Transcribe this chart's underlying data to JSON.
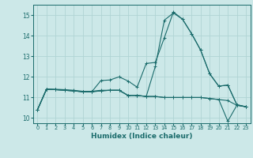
{
  "xlabel": "Humidex (Indice chaleur)",
  "xlim": [
    -0.5,
    23.5
  ],
  "ylim": [
    9.75,
    15.5
  ],
  "xticks": [
    0,
    1,
    2,
    3,
    4,
    5,
    6,
    7,
    8,
    9,
    10,
    11,
    12,
    13,
    14,
    15,
    16,
    17,
    18,
    19,
    20,
    21,
    22,
    23
  ],
  "yticks": [
    10,
    11,
    12,
    13,
    14,
    15
  ],
  "bg_color": "#cce8e8",
  "grid_color": "#b0d4d4",
  "line_color": "#1a6b6b",
  "lines": [
    [
      10.4,
      11.4,
      11.4,
      11.38,
      11.35,
      11.3,
      11.3,
      11.35,
      11.35,
      11.35,
      11.1,
      11.1,
      11.05,
      11.05,
      11.0,
      11.0,
      11.0,
      11.0,
      11.0,
      10.95,
      10.9,
      9.85,
      10.62,
      10.55
    ],
    [
      10.4,
      11.4,
      11.38,
      11.35,
      11.32,
      11.28,
      11.28,
      11.32,
      11.35,
      11.35,
      11.1,
      11.1,
      11.05,
      11.05,
      11.0,
      11.0,
      11.0,
      11.0,
      11.0,
      10.95,
      10.9,
      10.85,
      10.62,
      10.55
    ],
    [
      10.4,
      11.4,
      11.38,
      11.35,
      11.32,
      11.28,
      11.28,
      11.32,
      11.35,
      11.35,
      11.1,
      11.1,
      11.05,
      12.5,
      14.75,
      15.1,
      14.8,
      14.1,
      13.3,
      12.15,
      11.55,
      11.6,
      10.65,
      10.55
    ],
    [
      10.4,
      11.4,
      11.38,
      11.35,
      11.32,
      11.28,
      11.28,
      11.82,
      11.85,
      12.0,
      11.8,
      11.5,
      12.65,
      12.7,
      13.9,
      15.15,
      14.8,
      14.1,
      13.3,
      12.15,
      11.55,
      11.6,
      10.65,
      10.55
    ]
  ]
}
